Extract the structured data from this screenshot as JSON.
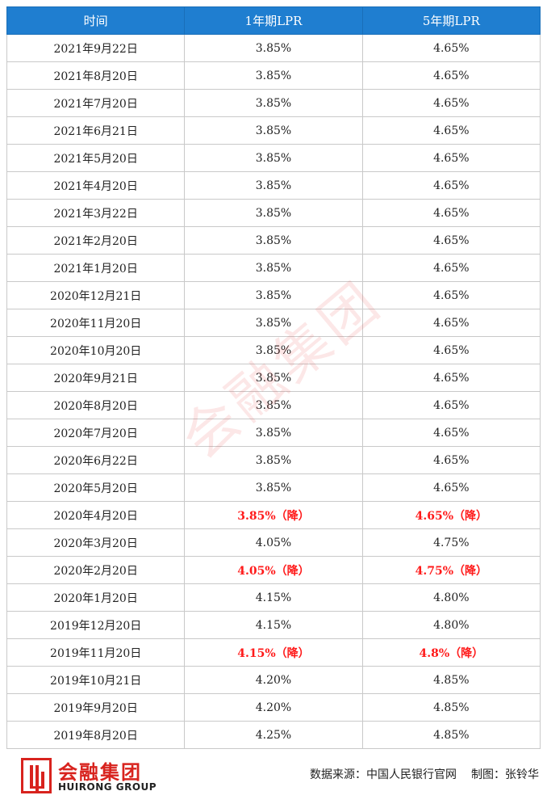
{
  "table": {
    "headers": [
      "时间",
      "1年期LPR",
      "5年期LPR"
    ],
    "rows": [
      {
        "date": "2021年9月22日",
        "one_year": "3.85%",
        "five_year": "4.65%"
      },
      {
        "date": "2021年8月20日",
        "one_year": "3.85%",
        "five_year": "4.65%"
      },
      {
        "date": "2021年7月20日",
        "one_year": "3.85%",
        "five_year": "4.65%"
      },
      {
        "date": "2021年6月21日",
        "one_year": "3.85%",
        "five_year": "4.65%"
      },
      {
        "date": "2021年5月20日",
        "one_year": "3.85%",
        "five_year": "4.65%"
      },
      {
        "date": "2021年4月20日",
        "one_year": "3.85%",
        "five_year": "4.65%"
      },
      {
        "date": "2021年3月22日",
        "one_year": "3.85%",
        "five_year": "4.65%"
      },
      {
        "date": "2021年2月20日",
        "one_year": "3.85%",
        "five_year": "4.65%"
      },
      {
        "date": "2021年1月20日",
        "one_year": "3.85%",
        "five_year": "4.65%"
      },
      {
        "date": "2020年12月21日",
        "one_year": "3.85%",
        "five_year": "4.65%"
      },
      {
        "date": "2020年11月20日",
        "one_year": "3.85%",
        "five_year": "4.65%"
      },
      {
        "date": "2020年10月20日",
        "one_year": "3.85%",
        "five_year": "4.65%"
      },
      {
        "date": "2020年9月21日",
        "one_year": "3.85%",
        "five_year": "4.65%"
      },
      {
        "date": "2020年8月20日",
        "one_year": "3.85%",
        "five_year": "4.65%"
      },
      {
        "date": "2020年7月20日",
        "one_year": "3.85%",
        "five_year": "4.65%"
      },
      {
        "date": "2020年6月22日",
        "one_year": "3.85%",
        "five_year": "4.65%"
      },
      {
        "date": "2020年5月20日",
        "one_year": "3.85%",
        "five_year": "4.65%"
      },
      {
        "date": "2020年4月20日",
        "one_year": "3.85%（降）",
        "five_year": "4.65%（降）",
        "cut": true
      },
      {
        "date": "2020年3月20日",
        "one_year": "4.05%",
        "five_year": "4.75%"
      },
      {
        "date": "2020年2月20日",
        "one_year": "4.05%（降）",
        "five_year": "4.75%（降）",
        "cut": true
      },
      {
        "date": "2020年1月20日",
        "one_year": "4.15%",
        "five_year": "4.80%"
      },
      {
        "date": "2019年12月20日",
        "one_year": "4.15%",
        "five_year": "4.80%"
      },
      {
        "date": "2019年11月20日",
        "one_year": "4.15%（降）",
        "five_year": "4.8%（降）",
        "cut": true
      },
      {
        "date": "2019年10月21日",
        "one_year": "4.20%",
        "five_year": "4.85%"
      },
      {
        "date": "2019年9月20日",
        "one_year": "4.20%",
        "five_year": "4.85%"
      },
      {
        "date": "2019年8月20日",
        "one_year": "4.25%",
        "five_year": "4.85%"
      }
    ]
  },
  "colors": {
    "header_bg": "#1f7ed0",
    "cut_text": "#ff1a1a",
    "brand_red": "#d8231e"
  },
  "watermark": "会融集团",
  "footer": {
    "logo_cn": "会融集团",
    "logo_en": "HUIRONG GROUP",
    "source": "数据来源：中国人民银行官网",
    "made_by": "制图：张铃华"
  }
}
